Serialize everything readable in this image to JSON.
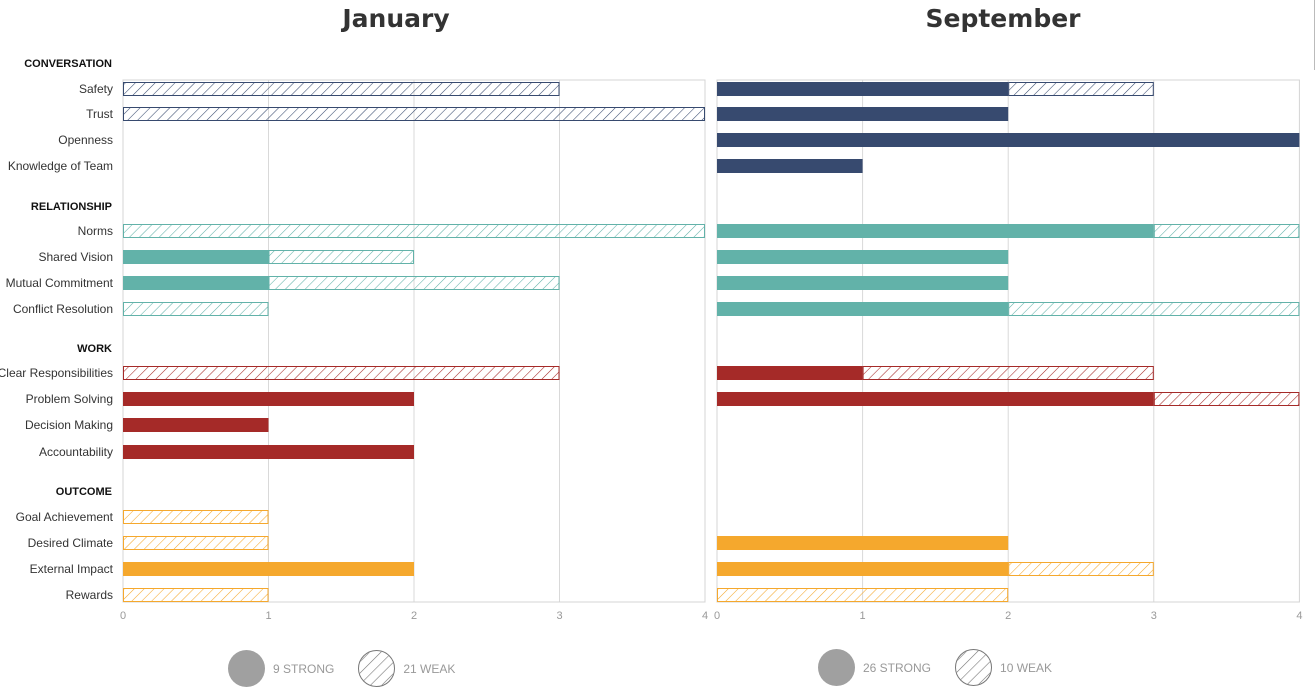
{
  "titles": {
    "left": "January",
    "right": "September"
  },
  "chart_data": [
    {
      "type": "bar",
      "orientation": "horizontal",
      "stacked": true,
      "title": "January",
      "xlim": [
        0,
        4
      ],
      "xticks": [
        0,
        1,
        2,
        3,
        4
      ],
      "groups": [
        {
          "name": "CONVERSATION",
          "color": "#374a6f",
          "items": [
            {
              "label": "Safety",
              "strong": 0,
              "weak": 3
            },
            {
              "label": "Trust",
              "strong": 0,
              "weak": 4
            },
            {
              "label": "Openness",
              "strong": 0,
              "weak": 0
            },
            {
              "label": "Knowledge of Team",
              "strong": 0,
              "weak": 0
            }
          ]
        },
        {
          "name": "RELATIONSHIP",
          "color": "#62b2a9",
          "items": [
            {
              "label": "Norms",
              "strong": 0,
              "weak": 4
            },
            {
              "label": "Shared Vision",
              "strong": 1,
              "weak": 1
            },
            {
              "label": "Mutual Commitment",
              "strong": 1,
              "weak": 2
            },
            {
              "label": "Conflict Resolution",
              "strong": 0,
              "weak": 1
            }
          ]
        },
        {
          "name": "WORK",
          "color": "#a52a28",
          "items": [
            {
              "label": "Clear Responsibilities",
              "strong": 0,
              "weak": 3
            },
            {
              "label": "Problem Solving",
              "strong": 2,
              "weak": 0
            },
            {
              "label": "Decision Making",
              "strong": 1,
              "weak": 0
            },
            {
              "label": "Accountability",
              "strong": 2,
              "weak": 0
            }
          ]
        },
        {
          "name": "OUTCOME",
          "color": "#f5a82d",
          "items": [
            {
              "label": "Goal Achievement",
              "strong": 0,
              "weak": 1
            },
            {
              "label": "Desired Climate",
              "strong": 0,
              "weak": 1
            },
            {
              "label": "External Impact",
              "strong": 2,
              "weak": 0
            },
            {
              "label": "Rewards",
              "strong": 0,
              "weak": 1
            }
          ]
        }
      ],
      "legend": {
        "strong": "9 STRONG",
        "weak": "21 WEAK"
      }
    },
    {
      "type": "bar",
      "orientation": "horizontal",
      "stacked": true,
      "title": "September",
      "xlim": [
        0,
        4
      ],
      "xticks": [
        0,
        1,
        2,
        3,
        4
      ],
      "groups": [
        {
          "name": "CONVERSATION",
          "color": "#374a6f",
          "items": [
            {
              "label": "Safety",
              "strong": 2,
              "weak": 1
            },
            {
              "label": "Trust",
              "strong": 2,
              "weak": 0
            },
            {
              "label": "Openness",
              "strong": 4,
              "weak": 0
            },
            {
              "label": "Knowledge of Team",
              "strong": 1,
              "weak": 0
            }
          ]
        },
        {
          "name": "RELATIONSHIP",
          "color": "#62b2a9",
          "items": [
            {
              "label": "Norms",
              "strong": 3,
              "weak": 1
            },
            {
              "label": "Shared Vision",
              "strong": 2,
              "weak": 0
            },
            {
              "label": "Mutual Commitment",
              "strong": 2,
              "weak": 0
            },
            {
              "label": "Conflict Resolution",
              "strong": 2,
              "weak": 2
            }
          ]
        },
        {
          "name": "WORK",
          "color": "#a52a28",
          "items": [
            {
              "label": "Clear Responsibilities",
              "strong": 1,
              "weak": 2
            },
            {
              "label": "Problem Solving",
              "strong": 3,
              "weak": 1
            },
            {
              "label": "Decision Making",
              "strong": 0,
              "weak": 0
            },
            {
              "label": "Accountability",
              "strong": 0,
              "weak": 0
            }
          ]
        },
        {
          "name": "OUTCOME",
          "color": "#f5a82d",
          "items": [
            {
              "label": "Goal Achievement",
              "strong": 0,
              "weak": 0
            },
            {
              "label": "Desired Climate",
              "strong": 2,
              "weak": 0
            },
            {
              "label": "External Impact",
              "strong": 2,
              "weak": 1
            },
            {
              "label": "Rewards",
              "strong": 0,
              "weak": 2
            }
          ]
        }
      ],
      "legend": {
        "strong": "26 STRONG",
        "weak": "10 WEAK"
      }
    }
  ]
}
